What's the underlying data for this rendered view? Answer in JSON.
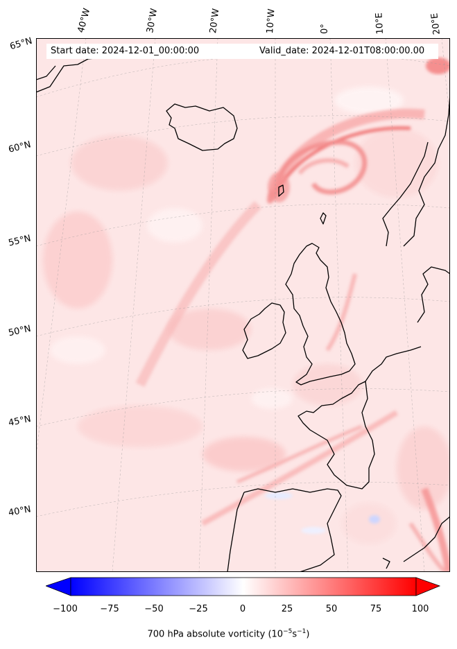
{
  "header": {
    "start_date": "Start date: 2024-12-01_00:00:00",
    "valid_date": "Valid_date: 2024-12-01T08:00:00.00"
  },
  "longitude_labels": [
    "40°W",
    "30°W",
    "20°W",
    "10°W",
    "0°",
    "10°E",
    "20°E"
  ],
  "latitude_labels": [
    "65°N",
    "60°N",
    "55°N",
    "50°N",
    "45°N",
    "40°N"
  ],
  "colorbar": {
    "ticks": [
      "−100",
      "−75",
      "−50",
      "−25",
      "0",
      "25",
      "50",
      "75",
      "100"
    ],
    "range": [
      -100,
      100
    ],
    "colormap": [
      "#0000ff",
      "#ffffff",
      "#ff0000"
    ],
    "label_prefix": "700 hPa absolute vorticity (10",
    "label_exp1": "−5",
    "label_mid": "s",
    "label_exp2": "−1",
    "label_suffix": ")"
  }
}
